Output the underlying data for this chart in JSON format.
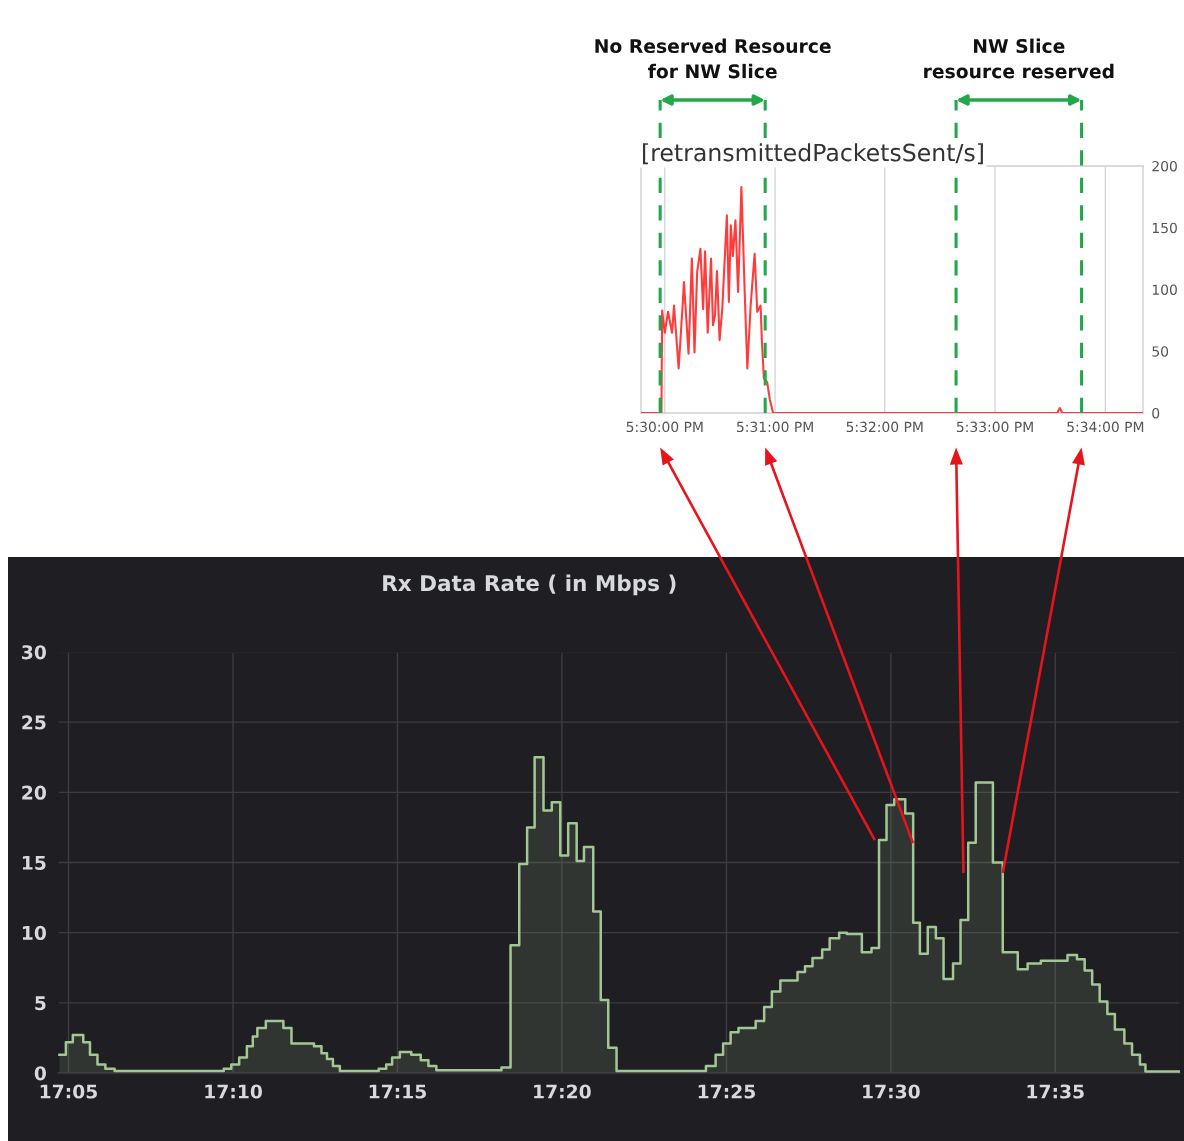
{
  "chart_data": [
    {
      "type": "line",
      "title": "[retransmittedPacketsSent/s]",
      "x": [
        17.4964,
        17.4995,
        17.4996,
        17.5,
        17.5005,
        17.5011,
        17.5014,
        17.5021,
        17.5027,
        17.5029,
        17.5036,
        17.5041,
        17.5045,
        17.5049,
        17.5054,
        17.5058,
        17.5061,
        17.5065,
        17.507,
        17.5073,
        17.5076,
        17.5079,
        17.5083,
        17.5087,
        17.5094,
        17.5097,
        17.51,
        17.5103,
        17.5107,
        17.5111,
        17.5116,
        17.5121,
        17.5125,
        17.513,
        17.5136,
        17.514,
        17.5145,
        17.5147,
        17.515,
        17.5155,
        17.5159,
        17.5164,
        17.5594,
        17.5598,
        17.5602,
        17.5724
      ],
      "series": [
        {
          "color": "#ff3b3b",
          "values": [
            0,
            0,
            83,
            65,
            82,
            65,
            87,
            36,
            87,
            106,
            48,
            125,
            49,
            114,
            133,
            84,
            131,
            65,
            125,
            71,
            79,
            115,
            59,
            84,
            160,
            90,
            152,
            127,
            156,
            98,
            183,
            98,
            36,
            87,
            129,
            82,
            87,
            59,
            28,
            25,
            11,
            0,
            0,
            4,
            0,
            0
          ]
        }
      ],
      "xlim": [
        17.4964,
        17.5724
      ],
      "xticks": [
        {
          "value": 17.5,
          "label": "5:30:00 PM"
        },
        {
          "value": 17.5167,
          "label": "5:31:00 PM"
        },
        {
          "value": 17.5333,
          "label": "5:32:00 PM"
        },
        {
          "value": 17.55,
          "label": "5:33:00 PM"
        },
        {
          "value": 17.5667,
          "label": "5:34:00 PM"
        }
      ],
      "ylim": [
        0,
        200
      ],
      "yticks": [
        0,
        50,
        100,
        150,
        200
      ],
      "grid": "x",
      "ref_lines": [
        {
          "axis": "x",
          "value": 17.4993,
          "color": "#22a84b",
          "line_style": "dashed"
        },
        {
          "axis": "x",
          "value": 17.5152,
          "color": "#22a84b",
          "line_style": "dashed"
        },
        {
          "axis": "x",
          "value": 17.5441,
          "color": "#22a84b",
          "line_style": "dashed"
        },
        {
          "axis": "x",
          "value": 17.5631,
          "color": "#22a84b",
          "line_style": "dashed"
        }
      ],
      "annotations": [
        "No Reserved Resource\nfor NW Slice",
        "NW Slice\nresource reserved"
      ]
    },
    {
      "type": "area",
      "title": "Rx Data Rate ( in Mbps )",
      "x": [
        17.0787,
        17.082,
        17.082,
        17.0855,
        17.0855,
        17.0908,
        17.0908,
        17.0942,
        17.0942,
        17.098,
        17.098,
        17.102,
        17.102,
        17.1067,
        17.1067,
        17.162,
        17.162,
        17.1658,
        17.1658,
        17.1698,
        17.1698,
        17.1737,
        17.1737,
        17.1767,
        17.1767,
        17.179,
        17.179,
        17.1833,
        17.1833,
        17.1922,
        17.1922,
        17.1963,
        17.1963,
        17.2077,
        17.2077,
        17.2115,
        17.2115,
        17.2143,
        17.2143,
        17.2173,
        17.2173,
        17.2208,
        17.2208,
        17.2405,
        17.2405,
        17.2443,
        17.2443,
        17.2473,
        17.2473,
        17.2512,
        17.2512,
        17.257,
        17.257,
        17.2618,
        17.2618,
        17.2657,
        17.2657,
        17.2697,
        17.2697,
        17.3027,
        17.3027,
        17.3073,
        17.3073,
        17.3117,
        17.3117,
        17.3157,
        17.3157,
        17.3195,
        17.3195,
        17.324,
        17.324,
        17.3282,
        17.3282,
        17.3325,
        17.3325,
        17.3365,
        17.3365,
        17.3408,
        17.3408,
        17.3445,
        17.3445,
        17.3492,
        17.3492,
        17.353,
        17.353,
        17.3568,
        17.3568,
        17.361,
        17.361,
        17.4063,
        17.4063,
        17.4112,
        17.4112,
        17.415,
        17.415,
        17.4188,
        17.4188,
        17.4228,
        17.4228,
        17.4315,
        17.4315,
        17.4358,
        17.4358,
        17.4397,
        17.4397,
        17.444,
        17.444,
        17.4527,
        17.4527,
        17.4565,
        17.4565,
        17.4603,
        17.4603,
        17.4652,
        17.4652,
        17.469,
        17.469,
        17.4738,
        17.4738,
        17.4777,
        17.4777,
        17.4853,
        17.4853,
        17.4902,
        17.4902,
        17.494,
        17.494,
        17.4978,
        17.4978,
        17.5017,
        17.5017,
        17.5073,
        17.5073,
        17.5113,
        17.5113,
        17.5147,
        17.5147,
        17.5187,
        17.5187,
        17.5228,
        17.5228,
        17.5267,
        17.5267,
        17.5315,
        17.5315,
        17.5353,
        17.5353,
        17.5392,
        17.5392,
        17.543,
        17.543,
        17.5517,
        17.5517,
        17.5567,
        17.5567,
        17.5643,
        17.5643,
        17.5693,
        17.5693,
        17.576,
        17.576,
        17.5895,
        17.5895,
        17.5943,
        17.5943,
        17.5982,
        17.5982,
        17.602,
        17.602,
        17.6058,
        17.6058,
        17.6097,
        17.6097,
        17.6135,
        17.6135,
        17.6183,
        17.6183,
        17.6222,
        17.6222,
        17.6262,
        17.6262,
        17.629,
        17.629,
        17.6465
      ],
      "series": [
        {
          "color": "#a3c794",
          "values": [
            1.3,
            1.3,
            2.2,
            2.2,
            2.7,
            2.7,
            2.2,
            2.2,
            1.3,
            1.3,
            0.6,
            0.6,
            0.3,
            0.3,
            0.15,
            0.15,
            0.3,
            0.3,
            0.6,
            0.6,
            1.1,
            1.1,
            1.9,
            1.9,
            2.6,
            2.6,
            3.2,
            3.2,
            3.7,
            3.7,
            3.2,
            3.2,
            2.1,
            2.1,
            1.9,
            1.9,
            1.4,
            1.4,
            1.0,
            1.0,
            0.5,
            0.5,
            0.15,
            0.15,
            0.3,
            0.3,
            0.6,
            0.6,
            1.1,
            1.1,
            1.5,
            1.5,
            1.3,
            1.3,
            0.9,
            0.9,
            0.5,
            0.5,
            0.2,
            0.2,
            0.4,
            0.4,
            9.1,
            9.1,
            14.9,
            14.9,
            17.5,
            17.5,
            22.5,
            22.5,
            18.7,
            18.7,
            19.3,
            19.3,
            15.5,
            15.5,
            17.8,
            17.8,
            15.1,
            15.1,
            16.1,
            16.1,
            11.5,
            11.5,
            5.2,
            5.2,
            1.8,
            1.8,
            0.15,
            0.15,
            0.5,
            0.5,
            1.3,
            1.3,
            2.1,
            2.1,
            2.9,
            2.9,
            3.2,
            3.2,
            3.7,
            3.7,
            4.7,
            4.7,
            5.8,
            5.8,
            6.6,
            6.6,
            7.2,
            7.2,
            7.6,
            7.6,
            8.2,
            8.2,
            8.8,
            8.8,
            9.6,
            9.6,
            10.0,
            10.0,
            9.9,
            9.9,
            8.6,
            8.6,
            8.9,
            8.9,
            16.6,
            16.6,
            19.1,
            19.1,
            19.5,
            19.5,
            18.5,
            18.5,
            10.7,
            10.7,
            8.5,
            8.5,
            10.4,
            10.4,
            9.6,
            9.6,
            6.7,
            6.7,
            7.8,
            7.8,
            10.9,
            10.9,
            16.4,
            16.4,
            20.7,
            20.7,
            15.0,
            15.0,
            8.6,
            8.6,
            7.4,
            7.4,
            7.8,
            7.8,
            8.0,
            8.0,
            8.4,
            8.4,
            8.1,
            8.1,
            7.3,
            7.3,
            6.3,
            6.3,
            5.1,
            5.1,
            4.2,
            4.2,
            3.1,
            3.1,
            2.1,
            2.1,
            1.3,
            1.3,
            0.6,
            0.6,
            0.1,
            0.1
          ]
        }
      ],
      "xlim": [
        17.078,
        17.6465
      ],
      "xticks": [
        {
          "value": 17.0833,
          "label": "17:05"
        },
        {
          "value": 17.1667,
          "label": "17:10"
        },
        {
          "value": 17.25,
          "label": "17:15"
        },
        {
          "value": 17.3333,
          "label": "17:20"
        },
        {
          "value": 17.4167,
          "label": "17:25"
        },
        {
          "value": 17.5,
          "label": "17:30"
        },
        {
          "value": 17.5833,
          "label": "17:35"
        }
      ],
      "ylim": [
        0,
        30
      ],
      "yticks": [
        0,
        5,
        10,
        15,
        20,
        25,
        30
      ],
      "grid": true
    }
  ]
}
